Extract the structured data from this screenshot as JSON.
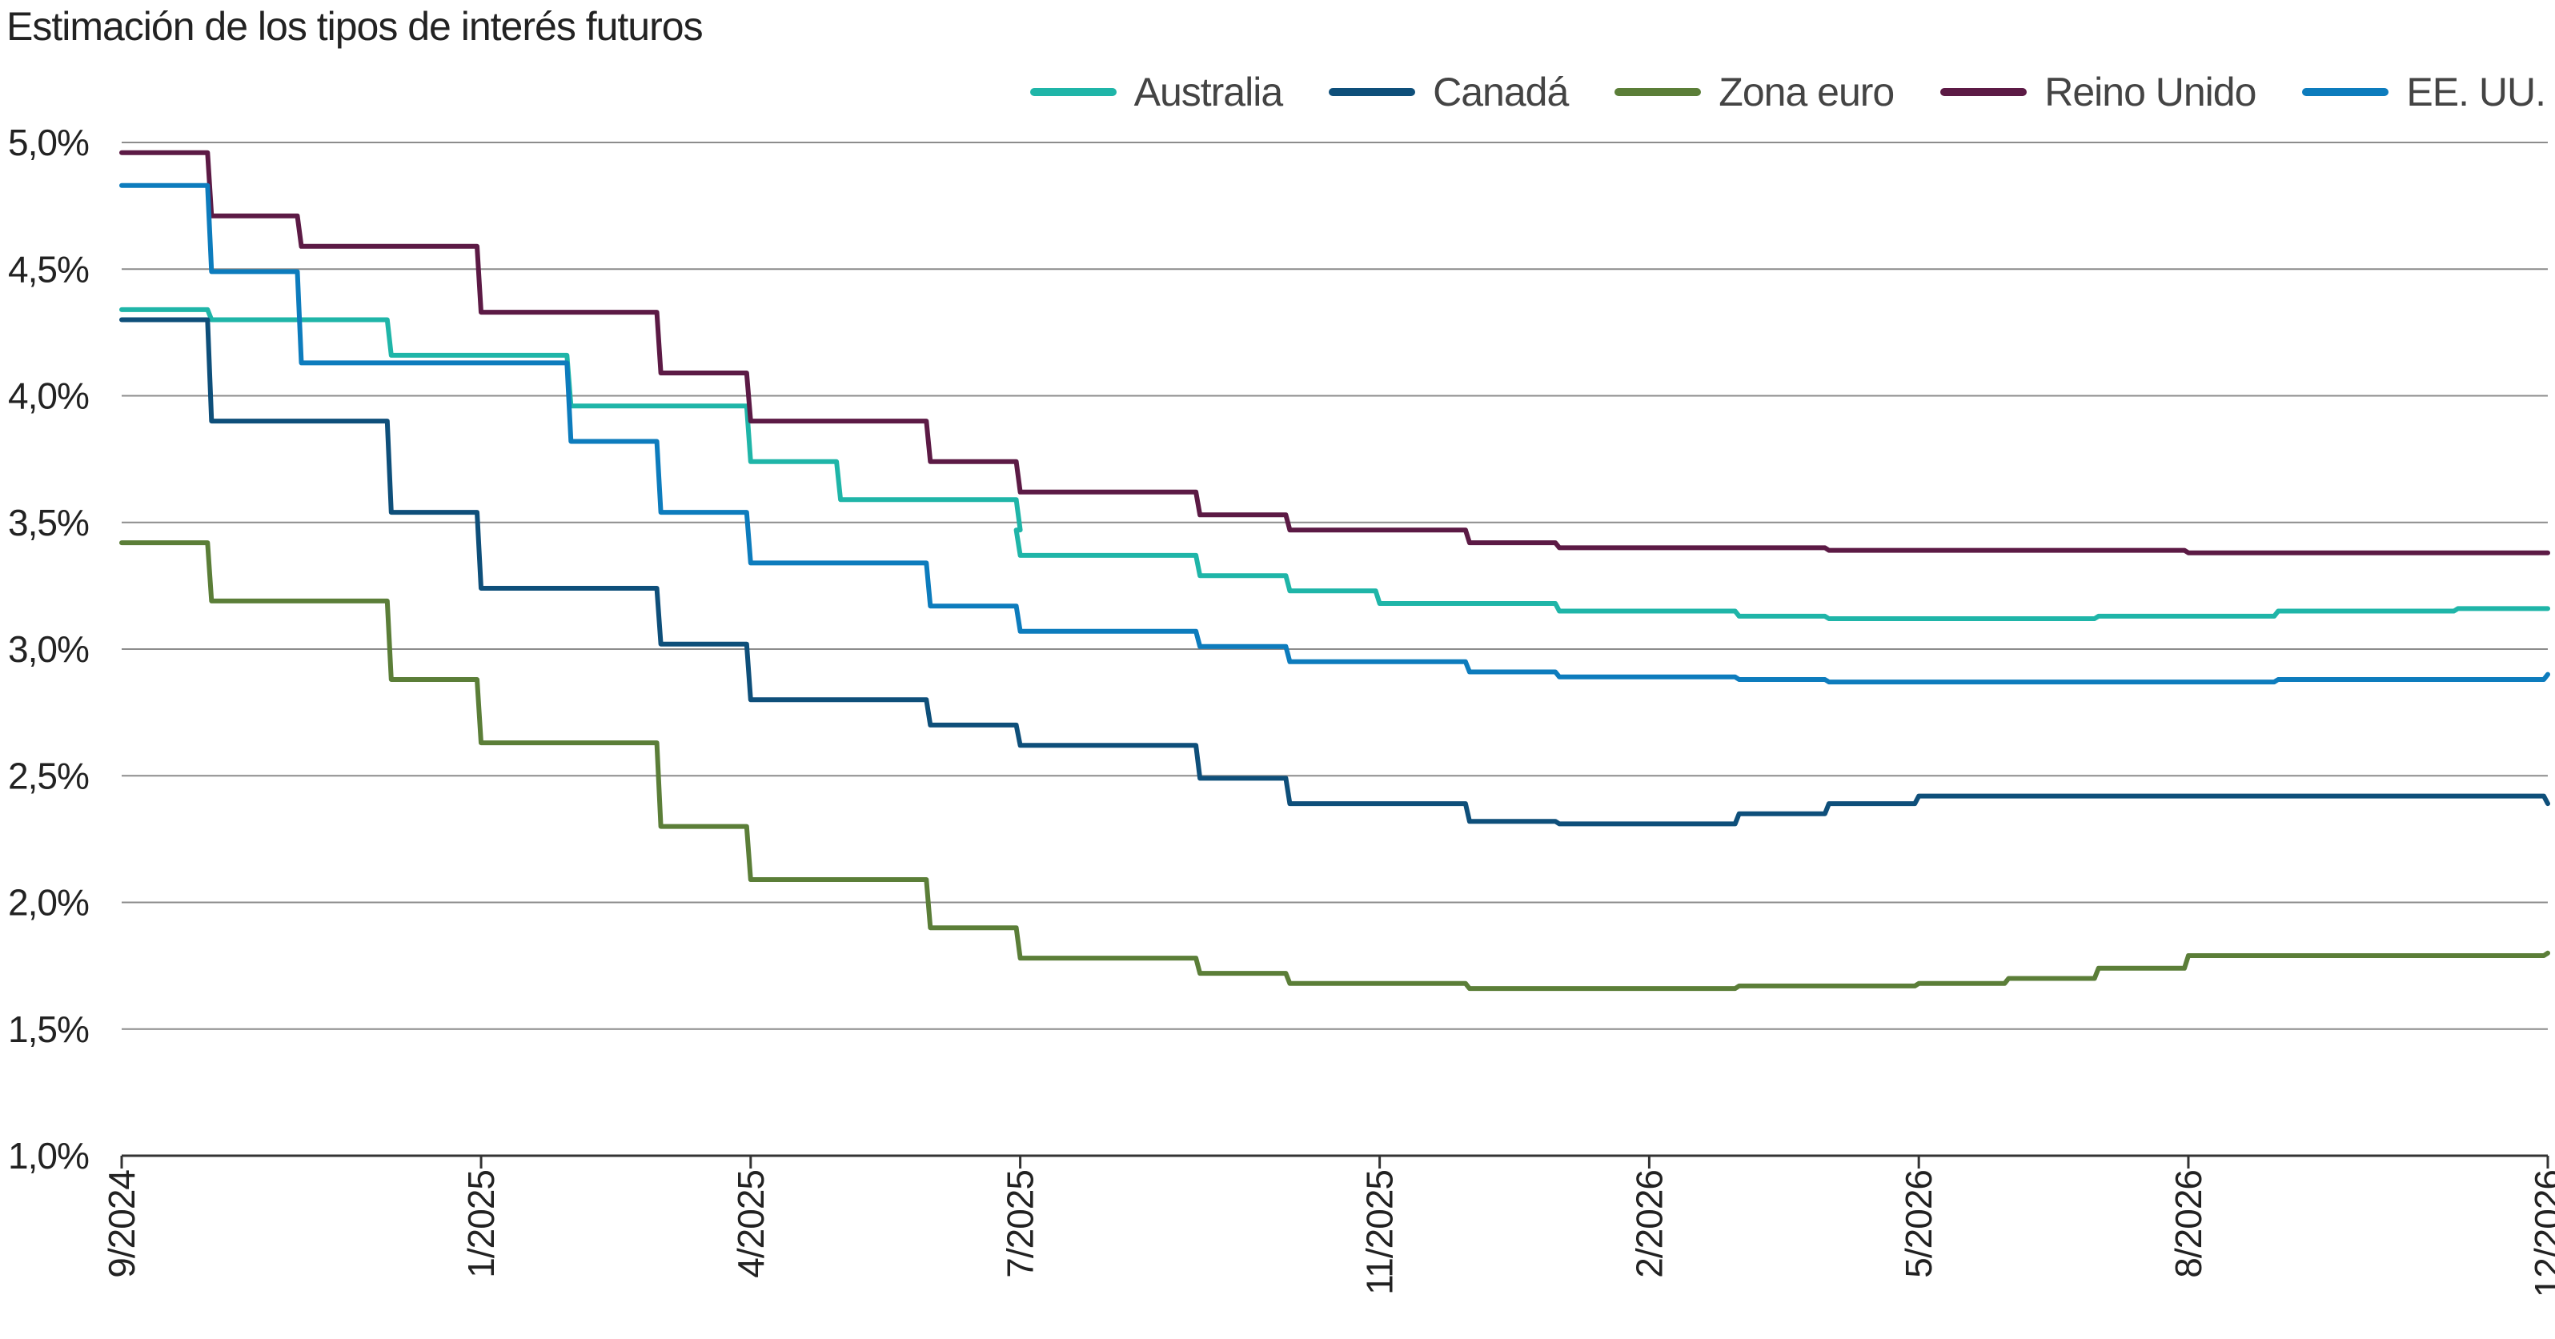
{
  "title": "Estimación de los tipos de interés futuros",
  "colors": {
    "Australia": "#1fb5a8",
    "Canadá": "#0e4f7a",
    "Zona euro": "#5b7e38",
    "Reino Unido": "#5c1a45",
    "EE. UU.": "#0d7cbd",
    "grid": "#8c8c8c",
    "axis": "#333333"
  },
  "chart_data": {
    "type": "line",
    "title": "Estimación de los tipos de interés futuros",
    "xlabel": "",
    "ylabel": "",
    "x_range": [
      "9/2024",
      "12/2026"
    ],
    "ylim": [
      1.0,
      5.0
    ],
    "yticks": [
      "1,0%",
      "1,5%",
      "2,0%",
      "2,5%",
      "3,0%",
      "3,5%",
      "4,0%",
      "4,5%",
      "5,0%"
    ],
    "ytick_values": [
      1.0,
      1.5,
      2.0,
      2.5,
      3.0,
      3.5,
      4.0,
      4.5,
      5.0
    ],
    "xticks": [
      "9/2024",
      "1/2025",
      "4/2025",
      "7/2025",
      "11/2025",
      "2/2026",
      "5/2026",
      "8/2026",
      "12/2026"
    ],
    "grid": true,
    "legend_position": "top-right",
    "series": [
      {
        "name": "Australia",
        "style": "step",
        "points": [
          [
            "9/2024",
            4.34
          ],
          [
            "10/2024",
            4.3
          ],
          [
            "12/2024",
            4.16
          ],
          [
            "2/2025",
            3.96
          ],
          [
            "4/2025",
            3.74
          ],
          [
            "5/2025",
            3.59
          ],
          [
            "7/2025",
            3.47
          ],
          [
            "7/2025",
            3.37
          ],
          [
            "9/2025",
            3.29
          ],
          [
            "10/2025",
            3.23
          ],
          [
            "11/2025",
            3.18
          ],
          [
            "1/2026",
            3.15
          ],
          [
            "3/2026",
            3.13
          ],
          [
            "4/2026",
            3.12
          ],
          [
            "7/2026",
            3.13
          ],
          [
            "9/2026",
            3.15
          ],
          [
            "11/2026",
            3.16
          ],
          [
            "12/2026",
            3.16
          ]
        ]
      },
      {
        "name": "Canadá",
        "style": "step",
        "points": [
          [
            "9/2024",
            4.3
          ],
          [
            "10/2024",
            3.9
          ],
          [
            "12/2024",
            3.54
          ],
          [
            "1/2025",
            3.24
          ],
          [
            "3/2025",
            3.02
          ],
          [
            "4/2025",
            2.8
          ],
          [
            "6/2025",
            2.7
          ],
          [
            "7/2025",
            2.62
          ],
          [
            "9/2025",
            2.49
          ],
          [
            "10/2025",
            2.39
          ],
          [
            "12/2025",
            2.32
          ],
          [
            "1/2026",
            2.31
          ],
          [
            "3/2026",
            2.35
          ],
          [
            "4/2026",
            2.39
          ],
          [
            "5/2026",
            2.42
          ],
          [
            "8/2026",
            2.42
          ],
          [
            "12/2026",
            2.39
          ]
        ]
      },
      {
        "name": "Zona euro",
        "style": "step",
        "points": [
          [
            "9/2024",
            3.42
          ],
          [
            "10/2024",
            3.19
          ],
          [
            "12/2024",
            2.88
          ],
          [
            "1/2025",
            2.63
          ],
          [
            "3/2025",
            2.3
          ],
          [
            "4/2025",
            2.09
          ],
          [
            "6/2025",
            1.9
          ],
          [
            "7/2025",
            1.78
          ],
          [
            "9/2025",
            1.72
          ],
          [
            "10/2025",
            1.68
          ],
          [
            "12/2025",
            1.66
          ],
          [
            "3/2026",
            1.67
          ],
          [
            "5/2026",
            1.68
          ],
          [
            "6/2026",
            1.7
          ],
          [
            "7/2026",
            1.74
          ],
          [
            "8/2026",
            1.79
          ],
          [
            "12/2026",
            1.8
          ]
        ]
      },
      {
        "name": "Reino Unido",
        "style": "step",
        "points": [
          [
            "9/2024",
            4.96
          ],
          [
            "10/2024",
            4.71
          ],
          [
            "11/2024",
            4.59
          ],
          [
            "1/2025",
            4.33
          ],
          [
            "3/2025",
            4.09
          ],
          [
            "4/2025",
            3.9
          ],
          [
            "6/2025",
            3.74
          ],
          [
            "7/2025",
            3.62
          ],
          [
            "9/2025",
            3.53
          ],
          [
            "10/2025",
            3.47
          ],
          [
            "12/2025",
            3.42
          ],
          [
            "1/2026",
            3.4
          ],
          [
            "4/2026",
            3.39
          ],
          [
            "8/2026",
            3.38
          ],
          [
            "12/2026",
            3.38
          ]
        ]
      },
      {
        "name": "EE. UU.",
        "style": "step",
        "points": [
          [
            "9/2024",
            4.83
          ],
          [
            "10/2024",
            4.49
          ],
          [
            "11/2024",
            4.13
          ],
          [
            "2/2025",
            3.82
          ],
          [
            "3/2025",
            3.54
          ],
          [
            "4/2025",
            3.34
          ],
          [
            "6/2025",
            3.17
          ],
          [
            "7/2025",
            3.07
          ],
          [
            "9/2025",
            3.01
          ],
          [
            "10/2025",
            2.95
          ],
          [
            "12/2025",
            2.91
          ],
          [
            "1/2026",
            2.89
          ],
          [
            "3/2026",
            2.88
          ],
          [
            "4/2026",
            2.87
          ],
          [
            "7/2026",
            2.87
          ],
          [
            "9/2026",
            2.88
          ],
          [
            "12/2026",
            2.9
          ]
        ]
      }
    ]
  }
}
